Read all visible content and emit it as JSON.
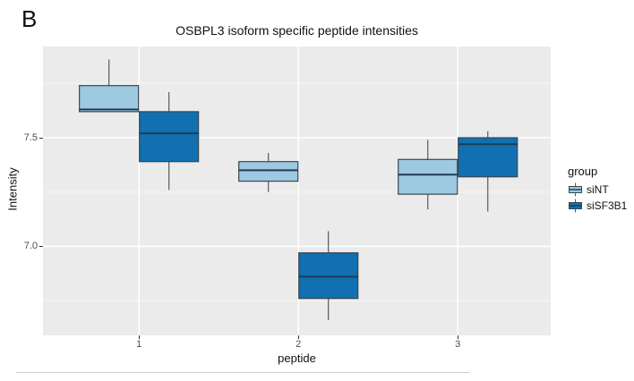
{
  "panel_label": "B",
  "colors": {
    "panel_background": "#EBEBEB",
    "grid_major": "#FFFFFF",
    "grid_minor": "#F5F5F5",
    "box_border": "#37474F",
    "median_line": "#1F3B52",
    "whisker": "#5A5A5A",
    "sint_fill": "#9DC9E1",
    "sisf3b1_fill": "#1070B2"
  },
  "chart_data": {
    "type": "boxplot",
    "title": "OSBPL3 isoform specific peptide intensities",
    "xlabel": "peptide",
    "ylabel": "Intensity",
    "categories": [
      "1",
      "2",
      "3"
    ],
    "ylim": [
      6.59,
      7.92
    ],
    "y_major_ticks": [
      7.0,
      7.5
    ],
    "y_major_tick_labels": [
      "7.0",
      "7.5"
    ],
    "y_minor_ticks": [
      6.75,
      7.25,
      7.75
    ],
    "grid": true,
    "legend": {
      "title": "group",
      "position": "right",
      "entries": [
        {
          "label": "siNT",
          "color": "#9DC9E1"
        },
        {
          "label": "siSF3B1",
          "color": "#1070B2"
        }
      ]
    },
    "series": [
      {
        "name": "siNT",
        "color": "#9DC9E1",
        "boxes": [
          {
            "category": "1",
            "min": 7.62,
            "q1": 7.62,
            "median": 7.63,
            "q3": 7.74,
            "max": 7.86
          },
          {
            "category": "2",
            "min": 7.25,
            "q1": 7.3,
            "median": 7.35,
            "q3": 7.39,
            "max": 7.43
          },
          {
            "category": "3",
            "min": 7.17,
            "q1": 7.24,
            "median": 7.33,
            "q3": 7.4,
            "max": 7.49
          }
        ]
      },
      {
        "name": "siSF3B1",
        "color": "#1070B2",
        "boxes": [
          {
            "category": "1",
            "min": 7.26,
            "q1": 7.39,
            "median": 7.52,
            "q3": 7.62,
            "max": 7.71
          },
          {
            "category": "2",
            "min": 6.66,
            "q1": 6.76,
            "median": 6.86,
            "q3": 6.97,
            "max": 7.07
          },
          {
            "category": "3",
            "min": 7.16,
            "q1": 7.32,
            "median": 7.47,
            "q3": 7.5,
            "max": 7.53
          }
        ]
      }
    ]
  }
}
